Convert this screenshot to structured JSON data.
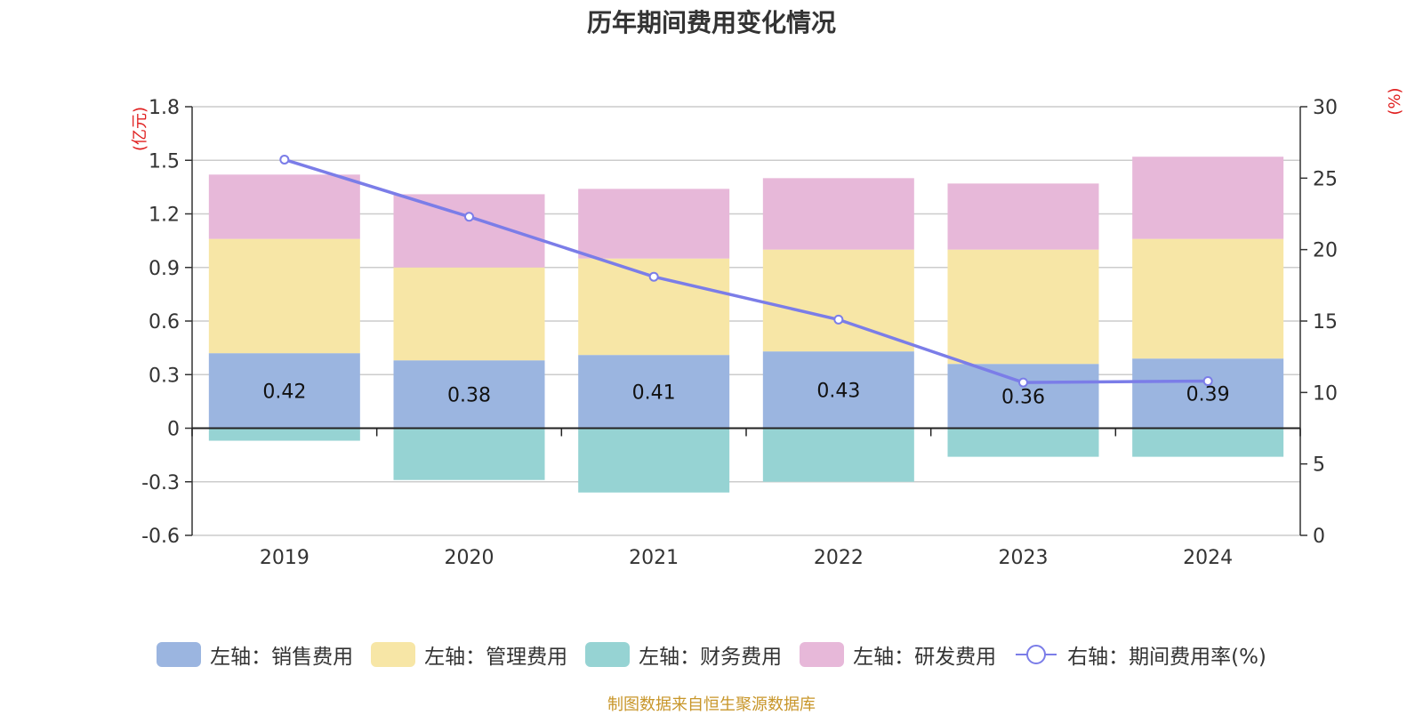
{
  "chart_data": {
    "type": "bar",
    "title": "历年期间费用变化情况",
    "categories": [
      "2019",
      "2020",
      "2021",
      "2022",
      "2023",
      "2024"
    ],
    "left_axis": {
      "unit": "(亿元)",
      "ylim": [
        -0.6,
        1.8
      ],
      "ticks": [
        "1.8",
        "1.5",
        "1.2",
        "0.9",
        "0.6",
        "0.3",
        "0",
        "-0.3",
        "-0.6"
      ]
    },
    "right_axis": {
      "unit": "(%)",
      "ylim": [
        0,
        30
      ],
      "ticks": [
        "30",
        "25",
        "20",
        "15",
        "10",
        "5",
        "0"
      ]
    },
    "series": [
      {
        "name": "左轴：销售费用",
        "color": "#9bb5e0",
        "values": [
          0.42,
          0.38,
          0.41,
          0.43,
          0.36,
          0.39
        ],
        "labels": [
          "0.42",
          "0.38",
          "0.41",
          "0.43",
          "0.36",
          "0.39"
        ]
      },
      {
        "name": "左轴：管理费用",
        "color": "#f7e6a6",
        "values": [
          0.64,
          0.52,
          0.54,
          0.57,
          0.64,
          0.67
        ]
      },
      {
        "name": "左轴：财务费用",
        "color": "#96d3d3",
        "values": [
          -0.07,
          -0.29,
          -0.36,
          -0.3,
          -0.16,
          -0.16
        ]
      },
      {
        "name": "左轴：研发费用",
        "color": "#e7b8d9",
        "values": [
          0.36,
          0.41,
          0.39,
          0.4,
          0.37,
          0.46
        ]
      },
      {
        "name": "右轴：期间费用率(%)",
        "color": "#7b7de8",
        "type": "line",
        "axis": "right",
        "values": [
          26.3,
          22.3,
          18.1,
          15.1,
          10.7,
          10.8
        ]
      }
    ],
    "grid": true,
    "legend_position": "bottom"
  },
  "source": "制图数据来自恒生聚源数据库"
}
